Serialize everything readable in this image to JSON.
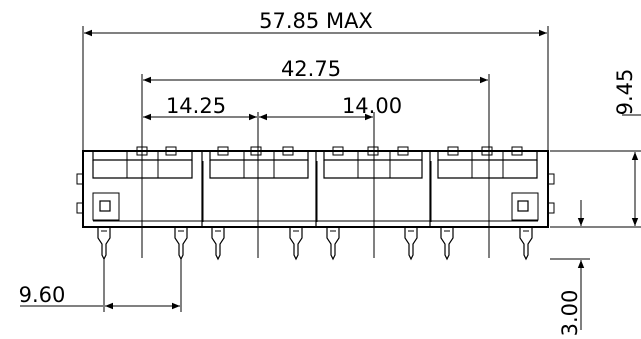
{
  "dimensions": {
    "overall_width": "57.85 MAX",
    "port_span": "42.75",
    "port_width": "14.25",
    "port_pitch": "14.00",
    "height": "9.45",
    "pin_pitch": "9.60",
    "pin_length": "3.00"
  }
}
